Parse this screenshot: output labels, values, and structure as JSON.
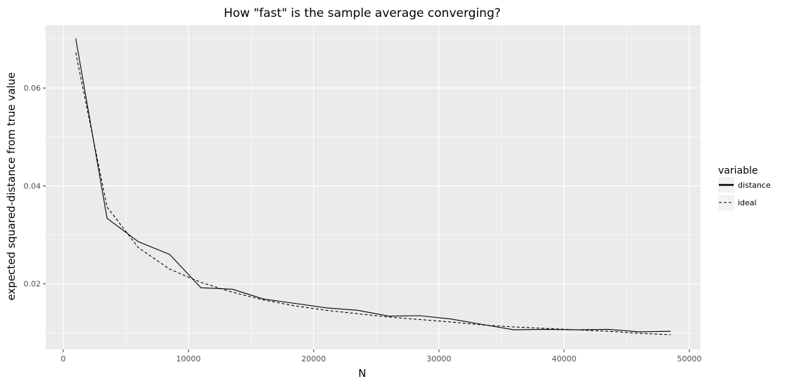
{
  "chart_data": {
    "type": "line",
    "title": "How \"fast\" is the sample average converging?",
    "xlabel": "N",
    "ylabel": "expected squared-distance from true value",
    "xlim": [
      -1400,
      50900
    ],
    "ylim": [
      0.0066,
      0.0728
    ],
    "x_ticks": [
      0,
      10000,
      20000,
      30000,
      40000,
      50000
    ],
    "y_ticks": [
      0.02,
      0.04,
      0.06
    ],
    "y_tick_labels": [
      "0.02",
      "0.04",
      "0.06"
    ],
    "grid": true,
    "legend": {
      "title": "variable",
      "position": "right",
      "entries": [
        {
          "label": "distance",
          "linetype": "solid"
        },
        {
          "label": "ideal",
          "linetype": "dashed"
        }
      ]
    },
    "x": [
      1000,
      3500,
      6000,
      8500,
      11000,
      13500,
      16000,
      18500,
      21000,
      23500,
      26000,
      28500,
      31000,
      33500,
      36000,
      38500,
      41000,
      43500,
      46000,
      48500
    ],
    "series": [
      {
        "name": "distance",
        "linetype": "solid",
        "values": [
          0.0701,
          0.0334,
          0.0286,
          0.026,
          0.0192,
          0.0189,
          0.0169,
          0.016,
          0.0151,
          0.0146,
          0.0134,
          0.0135,
          0.0128,
          0.0117,
          0.0106,
          0.0107,
          0.0106,
          0.0107,
          0.0102,
          0.0103
        ]
      },
      {
        "name": "ideal",
        "linetype": "dashed",
        "values": [
          0.0672,
          0.0357,
          0.0274,
          0.023,
          0.0203,
          0.0183,
          0.0167,
          0.0155,
          0.0146,
          0.0139,
          0.0132,
          0.0127,
          0.0122,
          0.0116,
          0.0112,
          0.0109,
          0.0106,
          0.0103,
          0.0099,
          0.0096
        ]
      }
    ],
    "colors": {
      "panel_background": "#ebebeb",
      "grid_major": "#ffffff",
      "line": "#000000",
      "legend_key_background": "#f2f2f2"
    }
  }
}
